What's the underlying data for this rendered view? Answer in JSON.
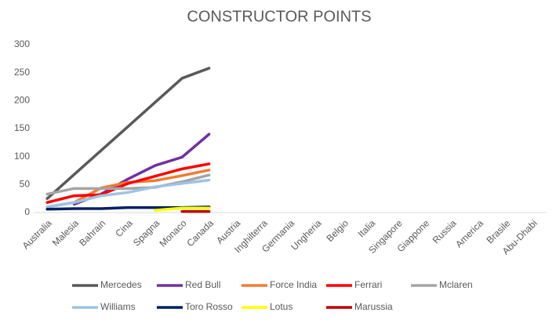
{
  "chart_data": {
    "type": "line",
    "title": "CONSTRUCTOR POINTS",
    "categories": [
      "Australia",
      "Malesia",
      "Bahrain",
      "Cina",
      "Spagna",
      "Monaco",
      "Canada",
      "Austria",
      "Inghilterra",
      "Germania",
      "Ungheria",
      "Belgio",
      "Italia",
      "Singapore",
      "Giappone",
      "Russia",
      "America",
      "Brasile",
      "Abu-Dhabi"
    ],
    "series": [
      {
        "name": "Mercedes",
        "color": "#595959",
        "values": [
          25,
          68,
          111,
          154,
          197,
          240,
          258,
          null,
          null,
          null,
          null,
          null,
          null,
          null,
          null,
          null,
          null,
          null,
          null
        ]
      },
      {
        "name": "Red Bull",
        "color": "#7030a0",
        "values": [
          null,
          15,
          33,
          60,
          84,
          99,
          140,
          null,
          null,
          null,
          null,
          null,
          null,
          null,
          null,
          null,
          null,
          null,
          null
        ]
      },
      {
        "name": "Force India",
        "color": "#ed7d31",
        "values": [
          10,
          18,
          44,
          54,
          57,
          66,
          76,
          null,
          null,
          null,
          null,
          null,
          null,
          null,
          null,
          null,
          null,
          null,
          null
        ]
      },
      {
        "name": "Ferrari",
        "color": "#ff0000",
        "values": [
          18,
          30,
          32,
          52,
          65,
          78,
          87,
          null,
          null,
          null,
          null,
          null,
          null,
          null,
          null,
          null,
          null,
          null,
          null
        ]
      },
      {
        "name": "Mclaren",
        "color": "#a5a5a5",
        "values": [
          33,
          43,
          43,
          43,
          45,
          55,
          67,
          null,
          null,
          null,
          null,
          null,
          null,
          null,
          null,
          null,
          null,
          null,
          null
        ]
      },
      {
        "name": "Williams",
        "color": "#9dc3e6",
        "values": [
          10,
          18,
          30,
          36,
          46,
          52,
          58,
          null,
          null,
          null,
          null,
          null,
          null,
          null,
          null,
          null,
          null,
          null,
          null
        ]
      },
      {
        "name": "Toro Rosso",
        "color": "#002060",
        "values": [
          6,
          7,
          7,
          9,
          9,
          9,
          10,
          null,
          null,
          null,
          null,
          null,
          null,
          null,
          null,
          null,
          null,
          null,
          null
        ]
      },
      {
        "name": "Lotus",
        "color": "#ffff00",
        "values": [
          null,
          null,
          null,
          null,
          4,
          8,
          8,
          null,
          null,
          null,
          null,
          null,
          null,
          null,
          null,
          null,
          null,
          null,
          null
        ]
      },
      {
        "name": "Marussia",
        "color": "#c00000",
        "values": [
          null,
          null,
          null,
          null,
          null,
          2,
          2,
          null,
          null,
          null,
          null,
          null,
          null,
          null,
          null,
          null,
          null,
          null,
          null
        ]
      }
    ],
    "ylim": [
      0,
      300
    ],
    "yticks": [
      0,
      50,
      100,
      150,
      200,
      250,
      300
    ],
    "grid": false,
    "legend": "bottom"
  }
}
